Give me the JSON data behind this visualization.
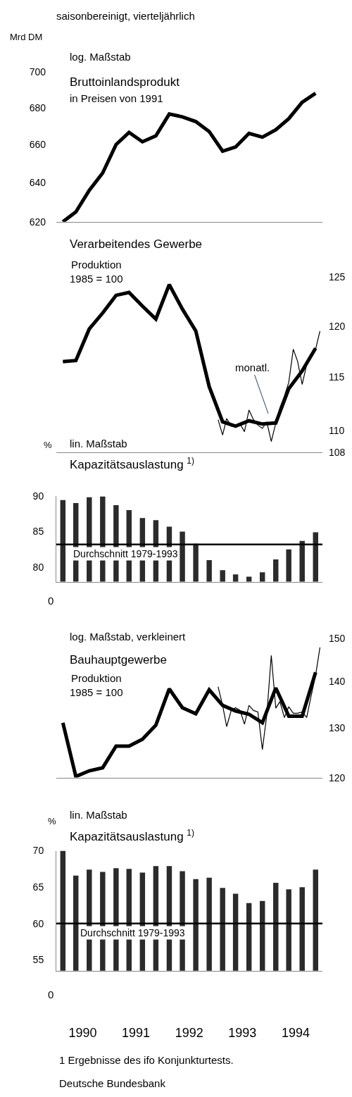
{
  "chart_data": [
    {
      "type": "line",
      "title": "Bruttoinlandsprodukt",
      "subtitle": "in Preisen von 1991",
      "ylabel": "Mrd DM",
      "annotations": [
        "saisonbereinigt, vierteljährlich",
        "log. Maßstab"
      ],
      "x": [
        "1990-02-15",
        "1990-05-15",
        "1990-08-15",
        "1990-11-15",
        "1991-02-15",
        "1991-05-15",
        "1991-08-15",
        "1991-11-15",
        "1992-02-15",
        "1992-05-15",
        "1992-08-15",
        "1992-11-15",
        "1993-02-15",
        "1993-05-15",
        "1993-08-15",
        "1993-11-15",
        "1994-02-15",
        "1994-05-15",
        "1994-08-15",
        "1994-11-15"
      ],
      "series": [
        {
          "color": "#000000",
          "values": [
            620,
            625,
            636,
            645,
            660,
            666.5,
            661.5,
            664.7,
            676.5,
            675,
            672.4,
            667,
            656.5,
            658.7,
            666,
            664,
            668,
            674,
            683,
            688
          ]
        }
      ],
      "log": true,
      "ylim": [
        620,
        700
      ],
      "yticks": [
        620,
        640,
        660,
        680,
        700
      ],
      "xlim": [
        "1990-01-01",
        "1995-01-01"
      ],
      "tick_labels": "y"
    },
    {
      "type": "line",
      "title": "Verarbeitendes Gewerbe",
      "subtitle": "Produktion\n1985 = 100",
      "annotations": [
        "monatl."
      ],
      "x": [
        "1990-02-15",
        "1990-05-15",
        "1990-08-15",
        "1990-11-15",
        "1991-02-15",
        "1991-05-15",
        "1991-08-15",
        "1991-11-15",
        "1992-02-15",
        "1992-05-15",
        "1992-08-15",
        "1992-11-15",
        "1993-02-15",
        "1993-05-15",
        "1993-08-15",
        "1993-11-15",
        "1994-02-15",
        "1994-05-15",
        "1994-08-15",
        "1994-11-15"
      ],
      "series": [
        {
          "color": "#000000",
          "axis": "y2",
          "values": [
            116.5,
            116.6,
            119.7,
            121.3,
            123.1,
            123.4,
            122.0,
            120.7,
            124.2,
            121.7,
            119.5,
            114.1,
            110.8,
            110.4,
            110.9,
            110.6,
            110.7,
            113.9,
            115.6,
            117.8
          ]
        },
        {
          "color": "#000000",
          "axis": "y2",
          "x": [
            "1993-01-15",
            "1993-02-15",
            "1993-03-15",
            "1993-04-15",
            "1993-05-15",
            "1993-06-15",
            "1993-07-15",
            "1993-08-15",
            "1993-09-15",
            "1993-10-15",
            "1993-11-15",
            "1993-12-15",
            "1994-01-15",
            "1994-02-15",
            "1994-03-15",
            "1994-04-15",
            "1994-05-15",
            "1994-06-15",
            "1994-07-15",
            "1994-08-15",
            "1994-09-15",
            "1994-10-15",
            "1994-11-15",
            "1994-12-15"
          ],
          "values": [
            111.0,
            109.6,
            111.1,
            110.4,
            110.4,
            110.6,
            109.9,
            111.9,
            111.0,
            110.5,
            110.2,
            110.8,
            109.0,
            110.7,
            112.1,
            113.2,
            114.5,
            117.7,
            116.5,
            114.3,
            116.2,
            117.2,
            117.7,
            119.5
          ]
        }
      ],
      "log": "y2",
      "y2lim": [
        108,
        125
      ],
      "y2ticks": [
        108,
        110,
        115,
        120,
        125
      ],
      "xlim": [
        "1990-01-01",
        "1995-01-01"
      ],
      "tick_labels": "y"
    },
    {
      "type": "bar",
      "title": "Kapazitätsauslastung $^{1)}$",
      "ylabel": "%",
      "annotations": [
        "lin. Maßstab",
        "0"
      ],
      "x": [
        "1990-02-15",
        "1990-05-15",
        "1990-08-15",
        "1990-11-15",
        "1991-02-15",
        "1991-05-15",
        "1991-08-15",
        "1991-11-15",
        "1992-02-15",
        "1992-05-15",
        "1992-08-15",
        "1992-11-15",
        "1993-02-15",
        "1993-05-15",
        "1993-08-15",
        "1993-11-15",
        "1994-02-15",
        "1994-05-15",
        "1994-08-15",
        "1994-11-15"
      ],
      "series": [
        {
          "color": "#2b2b2b",
          "values": [
            89.4,
            89.0,
            89.8,
            89.9,
            88.7,
            88.0,
            86.9,
            86.6,
            85.7,
            85.0,
            83.3,
            81.0,
            79.6,
            79.0,
            78.7,
            79.3,
            81.1,
            82.5,
            83.7,
            84.9
          ]
        }
      ],
      "ref_lines": [
        {
          "axis": "y",
          "value": 83.2,
          "label": "Durchschnitt 1979-1993",
          "color": "#000000"
        }
      ],
      "ylim": [
        78,
        90
      ],
      "yticks": [
        80,
        85,
        90
      ],
      "xlim": [
        "1990-01-01",
        "1995-01-01"
      ],
      "tick_labels": "y"
    },
    {
      "type": "line",
      "title": "Bauhauptgewerbe",
      "subtitle": "Produktion\n1985 = 100",
      "annotations": [
        "log. Maßstab, verkleinert"
      ],
      "x": [
        "1990-02-15",
        "1990-05-15",
        "1990-08-15",
        "1990-11-15",
        "1991-02-15",
        "1991-05-15",
        "1991-08-15",
        "1991-11-15",
        "1992-02-15",
        "1992-05-15",
        "1992-08-15",
        "1992-11-15",
        "1993-02-15",
        "1993-05-15",
        "1993-08-15",
        "1993-11-15",
        "1994-02-15",
        "1994-05-15",
        "1994-08-15",
        "1994-11-15"
      ],
      "series": [
        {
          "color": "#000000",
          "axis": "y2",
          "values": [
            131.0,
            120.2,
            121.3,
            121.9,
            126.2,
            126.2,
            127.6,
            130.5,
            138.3,
            134.2,
            132.9,
            138.1,
            134.7,
            133.5,
            132.8,
            131.0,
            138.5,
            132.4,
            132.4,
            142.0
          ]
        },
        {
          "color": "#000000",
          "axis": "y2",
          "x": [
            "1993-01-15",
            "1993-02-15",
            "1993-03-15",
            "1993-04-15",
            "1993-05-15",
            "1993-06-15",
            "1993-07-15",
            "1993-08-15",
            "1993-09-15",
            "1993-10-15",
            "1993-11-15",
            "1993-12-15",
            "1994-01-15",
            "1994-02-15",
            "1994-03-15",
            "1994-04-15",
            "1994-05-15",
            "1994-06-15",
            "1994-07-15",
            "1994-08-15",
            "1994-09-15",
            "1994-10-15",
            "1994-11-15",
            "1994-12-15"
          ],
          "values": [
            138.8,
            134.7,
            130.2,
            133.6,
            134.2,
            133.6,
            130.7,
            134.7,
            133.6,
            133.3,
            125.5,
            132.6,
            145.9,
            134.1,
            135.5,
            132.1,
            134.4,
            133.0,
            133.0,
            133.3,
            132.1,
            136.7,
            141.3,
            147.8
          ]
        }
      ],
      "log": "y2",
      "y2lim": [
        120,
        150
      ],
      "y2ticks": [
        120,
        130,
        140,
        150
      ],
      "xlim": [
        "1990-01-01",
        "1995-01-01"
      ],
      "tick_labels": "y"
    },
    {
      "type": "bar",
      "title": "Kapazitätsauslastung $^{1)}$",
      "ylabel": "%",
      "annotations": [
        "lin. Maßstab",
        "0",
        "1 Ergebnisse des ifo Konjunkturtests.",
        "Deutsche Bundesbank"
      ],
      "x": [
        "1990-02-15",
        "1990-05-15",
        "1990-08-15",
        "1990-11-15",
        "1991-02-15",
        "1991-05-15",
        "1991-08-15",
        "1991-11-15",
        "1992-02-15",
        "1992-05-15",
        "1992-08-15",
        "1992-11-15",
        "1993-02-15",
        "1993-05-15",
        "1993-08-15",
        "1993-11-15",
        "1994-02-15",
        "1994-05-15",
        "1994-08-15",
        "1994-11-15"
      ],
      "series": [
        {
          "color": "#2b2b2b",
          "values": [
            70.0,
            66.6,
            67.4,
            67.1,
            67.6,
            67.5,
            67.0,
            67.9,
            67.9,
            67.2,
            66.1,
            66.3,
            64.9,
            64.1,
            62.8,
            63.1,
            65.6,
            64.7,
            65.0,
            67.4
          ]
        }
      ],
      "ref_lines": [
        {
          "axis": "y",
          "value": 60,
          "label": "Durchschnitt 1979-1993",
          "color": "#000000"
        }
      ],
      "ylim": [
        53.5,
        70
      ],
      "yticks": [
        55,
        60,
        65,
        70
      ],
      "xlim": [
        "1990-01-01",
        "1995-01-01"
      ],
      "xticks": [
        {
          "value": "1990-07-01",
          "label": "1990"
        },
        {
          "value": "1991-07-01",
          "label": "1991"
        },
        {
          "value": "1992-07-01",
          "label": "1992"
        },
        {
          "value": "1993-07-01",
          "label": "1993"
        },
        {
          "value": "1994-07-01",
          "label": "1994"
        }
      ]
    }
  ]
}
